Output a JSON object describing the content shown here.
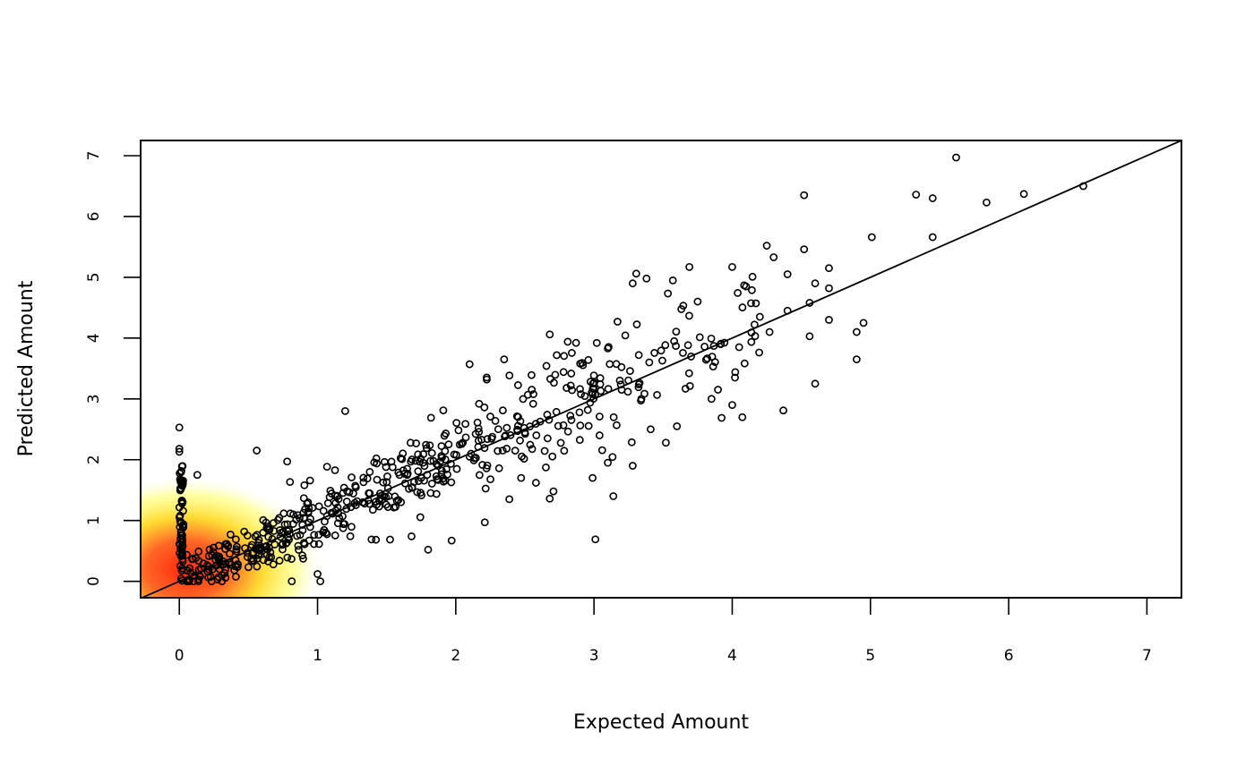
{
  "chart_data": {
    "type": "scatter",
    "title": "",
    "xlabel": "Expected Amount",
    "ylabel": "Predicted Amount",
    "xlim": [
      -0.28,
      7.25
    ],
    "ylim": [
      -0.27,
      7.25
    ],
    "x_ticks": [
      0,
      1,
      2,
      3,
      4,
      5,
      6,
      7
    ],
    "y_ticks": [
      0,
      1,
      2,
      3,
      4,
      5,
      6,
      7
    ],
    "x_tick_labels": [
      "0",
      "1",
      "2",
      "3",
      "4",
      "5",
      "6",
      "7"
    ],
    "y_tick_labels": [
      "0",
      "1",
      "2",
      "3",
      "4",
      "5",
      "6",
      "7"
    ],
    "grid": false,
    "legend": "none",
    "reference_line": {
      "type": "identity",
      "slope": 1,
      "intercept": 0
    },
    "density_shading": {
      "colors": [
        "#ff0000",
        "#ffff00",
        "#ffffff"
      ],
      "center": [
        0.05,
        0.2
      ],
      "note_visible": false
    },
    "outlier_points": [
      [
        5.62,
        6.97
      ],
      [
        6.54,
        6.5
      ],
      [
        6.11,
        6.37
      ],
      [
        5.84,
        6.23
      ],
      [
        5.33,
        6.36
      ],
      [
        5.45,
        6.3
      ],
      [
        4.52,
        6.35
      ],
      [
        5.01,
        5.66
      ],
      [
        5.45,
        5.66
      ],
      [
        4.25,
        5.52
      ],
      [
        4.52,
        5.46
      ],
      [
        4.3,
        5.33
      ],
      [
        4.7,
        5.15
      ],
      [
        3.69,
        5.17
      ],
      [
        4.0,
        5.17
      ],
      [
        4.4,
        5.05
      ],
      [
        4.6,
        4.9
      ],
      [
        4.1,
        4.85
      ],
      [
        3.38,
        4.98
      ],
      [
        3.28,
        4.9
      ],
      [
        4.7,
        4.82
      ],
      [
        4.56,
        4.58
      ],
      [
        3.75,
        4.6
      ],
      [
        4.4,
        4.45
      ],
      [
        4.2,
        4.35
      ],
      [
        4.7,
        4.3
      ],
      [
        4.95,
        4.25
      ],
      [
        4.9,
        4.1
      ],
      [
        4.56,
        4.03
      ],
      [
        4.27,
        4.1
      ],
      [
        4.05,
        3.85
      ],
      [
        3.8,
        3.86
      ],
      [
        3.58,
        3.95
      ],
      [
        4.9,
        3.65
      ],
      [
        3.4,
        3.6
      ],
      [
        3.02,
        3.92
      ],
      [
        2.81,
        3.94
      ],
      [
        3.1,
        3.83
      ],
      [
        4.6,
        3.25
      ],
      [
        4.37,
        2.81
      ],
      [
        4.02,
        3.35
      ],
      [
        4.0,
        2.9
      ],
      [
        3.85,
        3.0
      ],
      [
        3.6,
        2.55
      ],
      [
        3.52,
        2.28
      ],
      [
        3.41,
        2.5
      ],
      [
        3.28,
        1.9
      ],
      [
        3.14,
        1.4
      ],
      [
        3.1,
        1.95
      ],
      [
        3.04,
        2.4
      ],
      [
        2.99,
        1.7
      ],
      [
        2.68,
        1.36
      ],
      [
        2.58,
        1.62
      ],
      [
        3.01,
        0.69
      ],
      [
        2.21,
        0.97
      ],
      [
        1.97,
        0.67
      ],
      [
        1.8,
        0.52
      ],
      [
        1.68,
        0.74
      ],
      [
        1.2,
        2.8
      ],
      [
        1.0,
        0.12
      ],
      [
        1.02,
        0.0
      ],
      [
        0.56,
        2.15
      ],
      [
        0.0,
        2.53
      ],
      [
        0.0,
        2.18
      ],
      [
        0.0,
        2.13
      ],
      [
        0.13,
        1.75
      ],
      [
        0.78,
        1.97
      ],
      [
        2.1,
        3.57
      ],
      [
        2.35,
        3.65
      ],
      [
        2.68,
        4.06
      ],
      [
        2.9,
        3.58
      ],
      [
        3.17,
        4.27
      ],
      [
        2.1,
        2.05
      ],
      [
        2.5,
        2.45
      ],
      [
        3.2,
        3.15
      ]
    ],
    "cloud_regions": [
      {
        "x_range": [
          0.0,
          0.03
        ],
        "y_range": [
          0.0,
          1.9
        ],
        "count": 60,
        "spread": 0.0
      },
      {
        "x_range": [
          0.05,
          0.8
        ],
        "y_range": [
          0.0,
          1.0
        ],
        "count": 150,
        "spread": 0.18
      },
      {
        "x_range": [
          0.8,
          2.0
        ],
        "y_range": [
          0.8,
          2.2
        ],
        "count": 200,
        "spread": 0.3
      },
      {
        "x_range": [
          2.0,
          3.2
        ],
        "y_range": [
          1.8,
          3.6
        ],
        "count": 140,
        "spread": 0.45
      },
      {
        "x_range": [
          3.2,
          4.2
        ],
        "y_range": [
          3.0,
          4.6
        ],
        "count": 60,
        "spread": 0.55
      }
    ]
  }
}
